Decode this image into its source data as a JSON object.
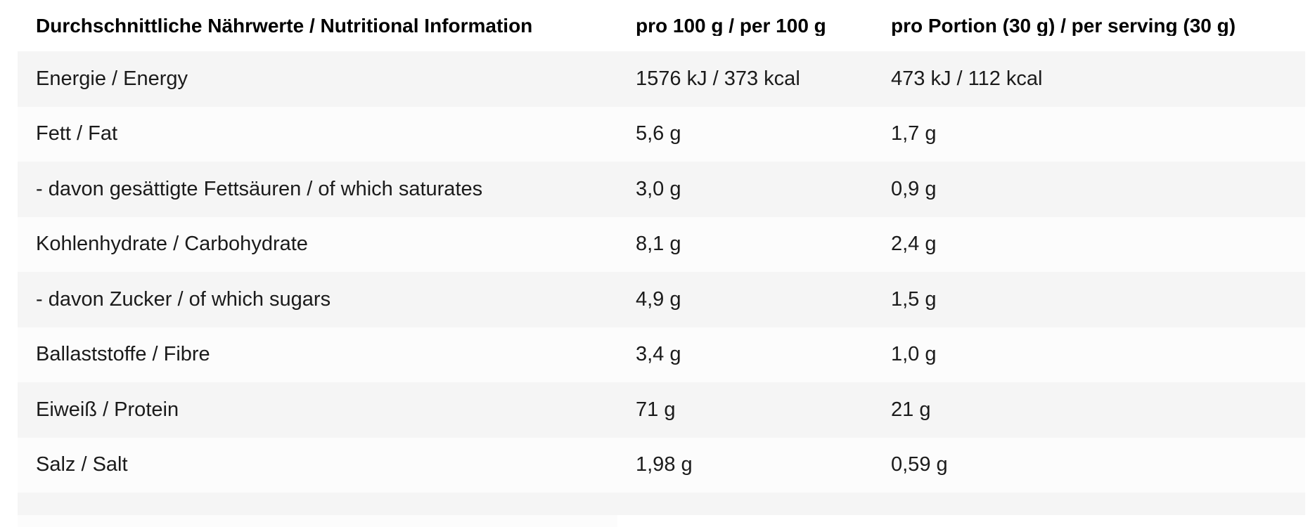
{
  "colors": {
    "page_bg": "#ffffff",
    "row_odd": "#f5f5f5",
    "row_even": "#fcfcfc",
    "header_text": "#000000",
    "body_text": "#1b1b1b"
  },
  "chart_data": {
    "type": "table",
    "title": "Durchschnittliche Nährwerte / Nutritional Information",
    "columns": [
      "Durchschnittliche Nährwerte / Nutritional Information",
      "pro 100 g / per 100 g",
      "pro Portion (30 g) / per serving (30 g)"
    ],
    "rows": [
      [
        "Energie / Energy",
        "1576 kJ / 373 kcal",
        "473 kJ / 112 kcal"
      ],
      [
        "Fett / Fat",
        "5,6 g",
        "1,7 g"
      ],
      [
        "- davon gesättigte Fettsäuren / of which saturates",
        "3,0 g",
        "0,9 g"
      ],
      [
        "Kohlenhydrate / Carbohydrate",
        "8,1 g",
        "2,4 g"
      ],
      [
        "- davon Zucker / of which sugars",
        "4,9 g",
        "1,5 g"
      ],
      [
        "Ballaststoffe / Fibre",
        "3,4 g",
        "1,0 g"
      ],
      [
        "Eiweiß / Protein",
        "71 g",
        "21 g"
      ],
      [
        "Salz / Salt",
        "1,98 g",
        "0,59 g"
      ]
    ],
    "layout": {
      "striped": true,
      "first_stripe": "gray",
      "serving_size_g": 30
    }
  }
}
